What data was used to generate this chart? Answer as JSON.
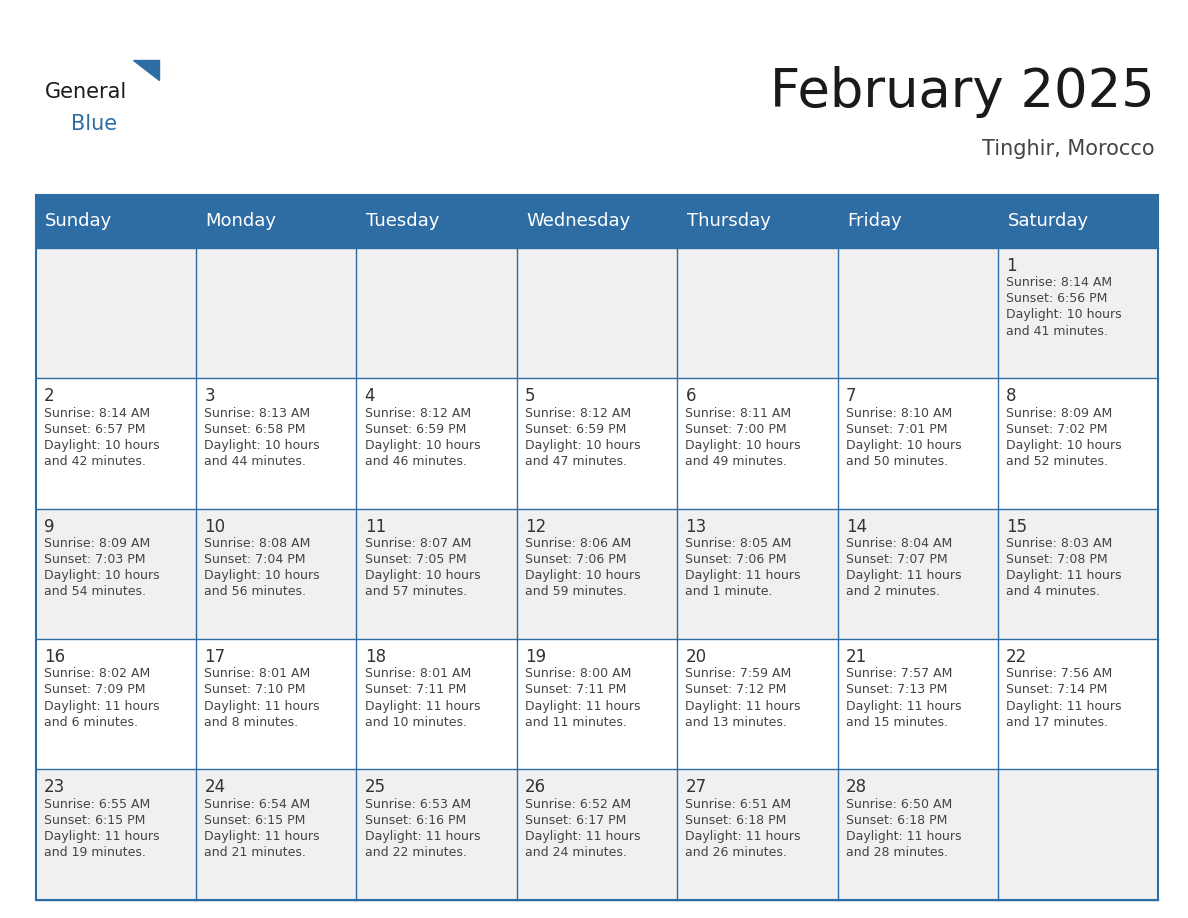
{
  "title": "February 2025",
  "subtitle": "Tinghir, Morocco",
  "header_color": "#2E6DA4",
  "header_text_color": "#FFFFFF",
  "bg_color": "#FFFFFF",
  "cell_bg_row0": "#F0F0F0",
  "cell_bg_row1": "#FFFFFF",
  "cell_bg_row2": "#F0F0F0",
  "cell_bg_row3": "#FFFFFF",
  "cell_bg_row4": "#F0F0F0",
  "day_headers": [
    "Sunday",
    "Monday",
    "Tuesday",
    "Wednesday",
    "Thursday",
    "Friday",
    "Saturday"
  ],
  "title_fontsize": 38,
  "subtitle_fontsize": 15,
  "header_fontsize": 13,
  "day_num_fontsize": 12,
  "cell_fontsize": 9,
  "calendar": [
    [
      null,
      null,
      null,
      null,
      null,
      null,
      {
        "day": "1",
        "sunrise": "8:14 AM",
        "sunset": "6:56 PM",
        "daylight": "10 hours\nand 41 minutes."
      }
    ],
    [
      {
        "day": "2",
        "sunrise": "8:14 AM",
        "sunset": "6:57 PM",
        "daylight": "10 hours\nand 42 minutes."
      },
      {
        "day": "3",
        "sunrise": "8:13 AM",
        "sunset": "6:58 PM",
        "daylight": "10 hours\nand 44 minutes."
      },
      {
        "day": "4",
        "sunrise": "8:12 AM",
        "sunset": "6:59 PM",
        "daylight": "10 hours\nand 46 minutes."
      },
      {
        "day": "5",
        "sunrise": "8:12 AM",
        "sunset": "6:59 PM",
        "daylight": "10 hours\nand 47 minutes."
      },
      {
        "day": "6",
        "sunrise": "8:11 AM",
        "sunset": "7:00 PM",
        "daylight": "10 hours\nand 49 minutes."
      },
      {
        "day": "7",
        "sunrise": "8:10 AM",
        "sunset": "7:01 PM",
        "daylight": "10 hours\nand 50 minutes."
      },
      {
        "day": "8",
        "sunrise": "8:09 AM",
        "sunset": "7:02 PM",
        "daylight": "10 hours\nand 52 minutes."
      }
    ],
    [
      {
        "day": "9",
        "sunrise": "8:09 AM",
        "sunset": "7:03 PM",
        "daylight": "10 hours\nand 54 minutes."
      },
      {
        "day": "10",
        "sunrise": "8:08 AM",
        "sunset": "7:04 PM",
        "daylight": "10 hours\nand 56 minutes."
      },
      {
        "day": "11",
        "sunrise": "8:07 AM",
        "sunset": "7:05 PM",
        "daylight": "10 hours\nand 57 minutes."
      },
      {
        "day": "12",
        "sunrise": "8:06 AM",
        "sunset": "7:06 PM",
        "daylight": "10 hours\nand 59 minutes."
      },
      {
        "day": "13",
        "sunrise": "8:05 AM",
        "sunset": "7:06 PM",
        "daylight": "11 hours\nand 1 minute."
      },
      {
        "day": "14",
        "sunrise": "8:04 AM",
        "sunset": "7:07 PM",
        "daylight": "11 hours\nand 2 minutes."
      },
      {
        "day": "15",
        "sunrise": "8:03 AM",
        "sunset": "7:08 PM",
        "daylight": "11 hours\nand 4 minutes."
      }
    ],
    [
      {
        "day": "16",
        "sunrise": "8:02 AM",
        "sunset": "7:09 PM",
        "daylight": "11 hours\nand 6 minutes."
      },
      {
        "day": "17",
        "sunrise": "8:01 AM",
        "sunset": "7:10 PM",
        "daylight": "11 hours\nand 8 minutes."
      },
      {
        "day": "18",
        "sunrise": "8:01 AM",
        "sunset": "7:11 PM",
        "daylight": "11 hours\nand 10 minutes."
      },
      {
        "day": "19",
        "sunrise": "8:00 AM",
        "sunset": "7:11 PM",
        "daylight": "11 hours\nand 11 minutes."
      },
      {
        "day": "20",
        "sunrise": "7:59 AM",
        "sunset": "7:12 PM",
        "daylight": "11 hours\nand 13 minutes."
      },
      {
        "day": "21",
        "sunrise": "7:57 AM",
        "sunset": "7:13 PM",
        "daylight": "11 hours\nand 15 minutes."
      },
      {
        "day": "22",
        "sunrise": "7:56 AM",
        "sunset": "7:14 PM",
        "daylight": "11 hours\nand 17 minutes."
      }
    ],
    [
      {
        "day": "23",
        "sunrise": "6:55 AM",
        "sunset": "6:15 PM",
        "daylight": "11 hours\nand 19 minutes."
      },
      {
        "day": "24",
        "sunrise": "6:54 AM",
        "sunset": "6:15 PM",
        "daylight": "11 hours\nand 21 minutes."
      },
      {
        "day": "25",
        "sunrise": "6:53 AM",
        "sunset": "6:16 PM",
        "daylight": "11 hours\nand 22 minutes."
      },
      {
        "day": "26",
        "sunrise": "6:52 AM",
        "sunset": "6:17 PM",
        "daylight": "11 hours\nand 24 minutes."
      },
      {
        "day": "27",
        "sunrise": "6:51 AM",
        "sunset": "6:18 PM",
        "daylight": "11 hours\nand 26 minutes."
      },
      {
        "day": "28",
        "sunrise": "6:50 AM",
        "sunset": "6:18 PM",
        "daylight": "11 hours\nand 28 minutes."
      },
      null
    ]
  ]
}
